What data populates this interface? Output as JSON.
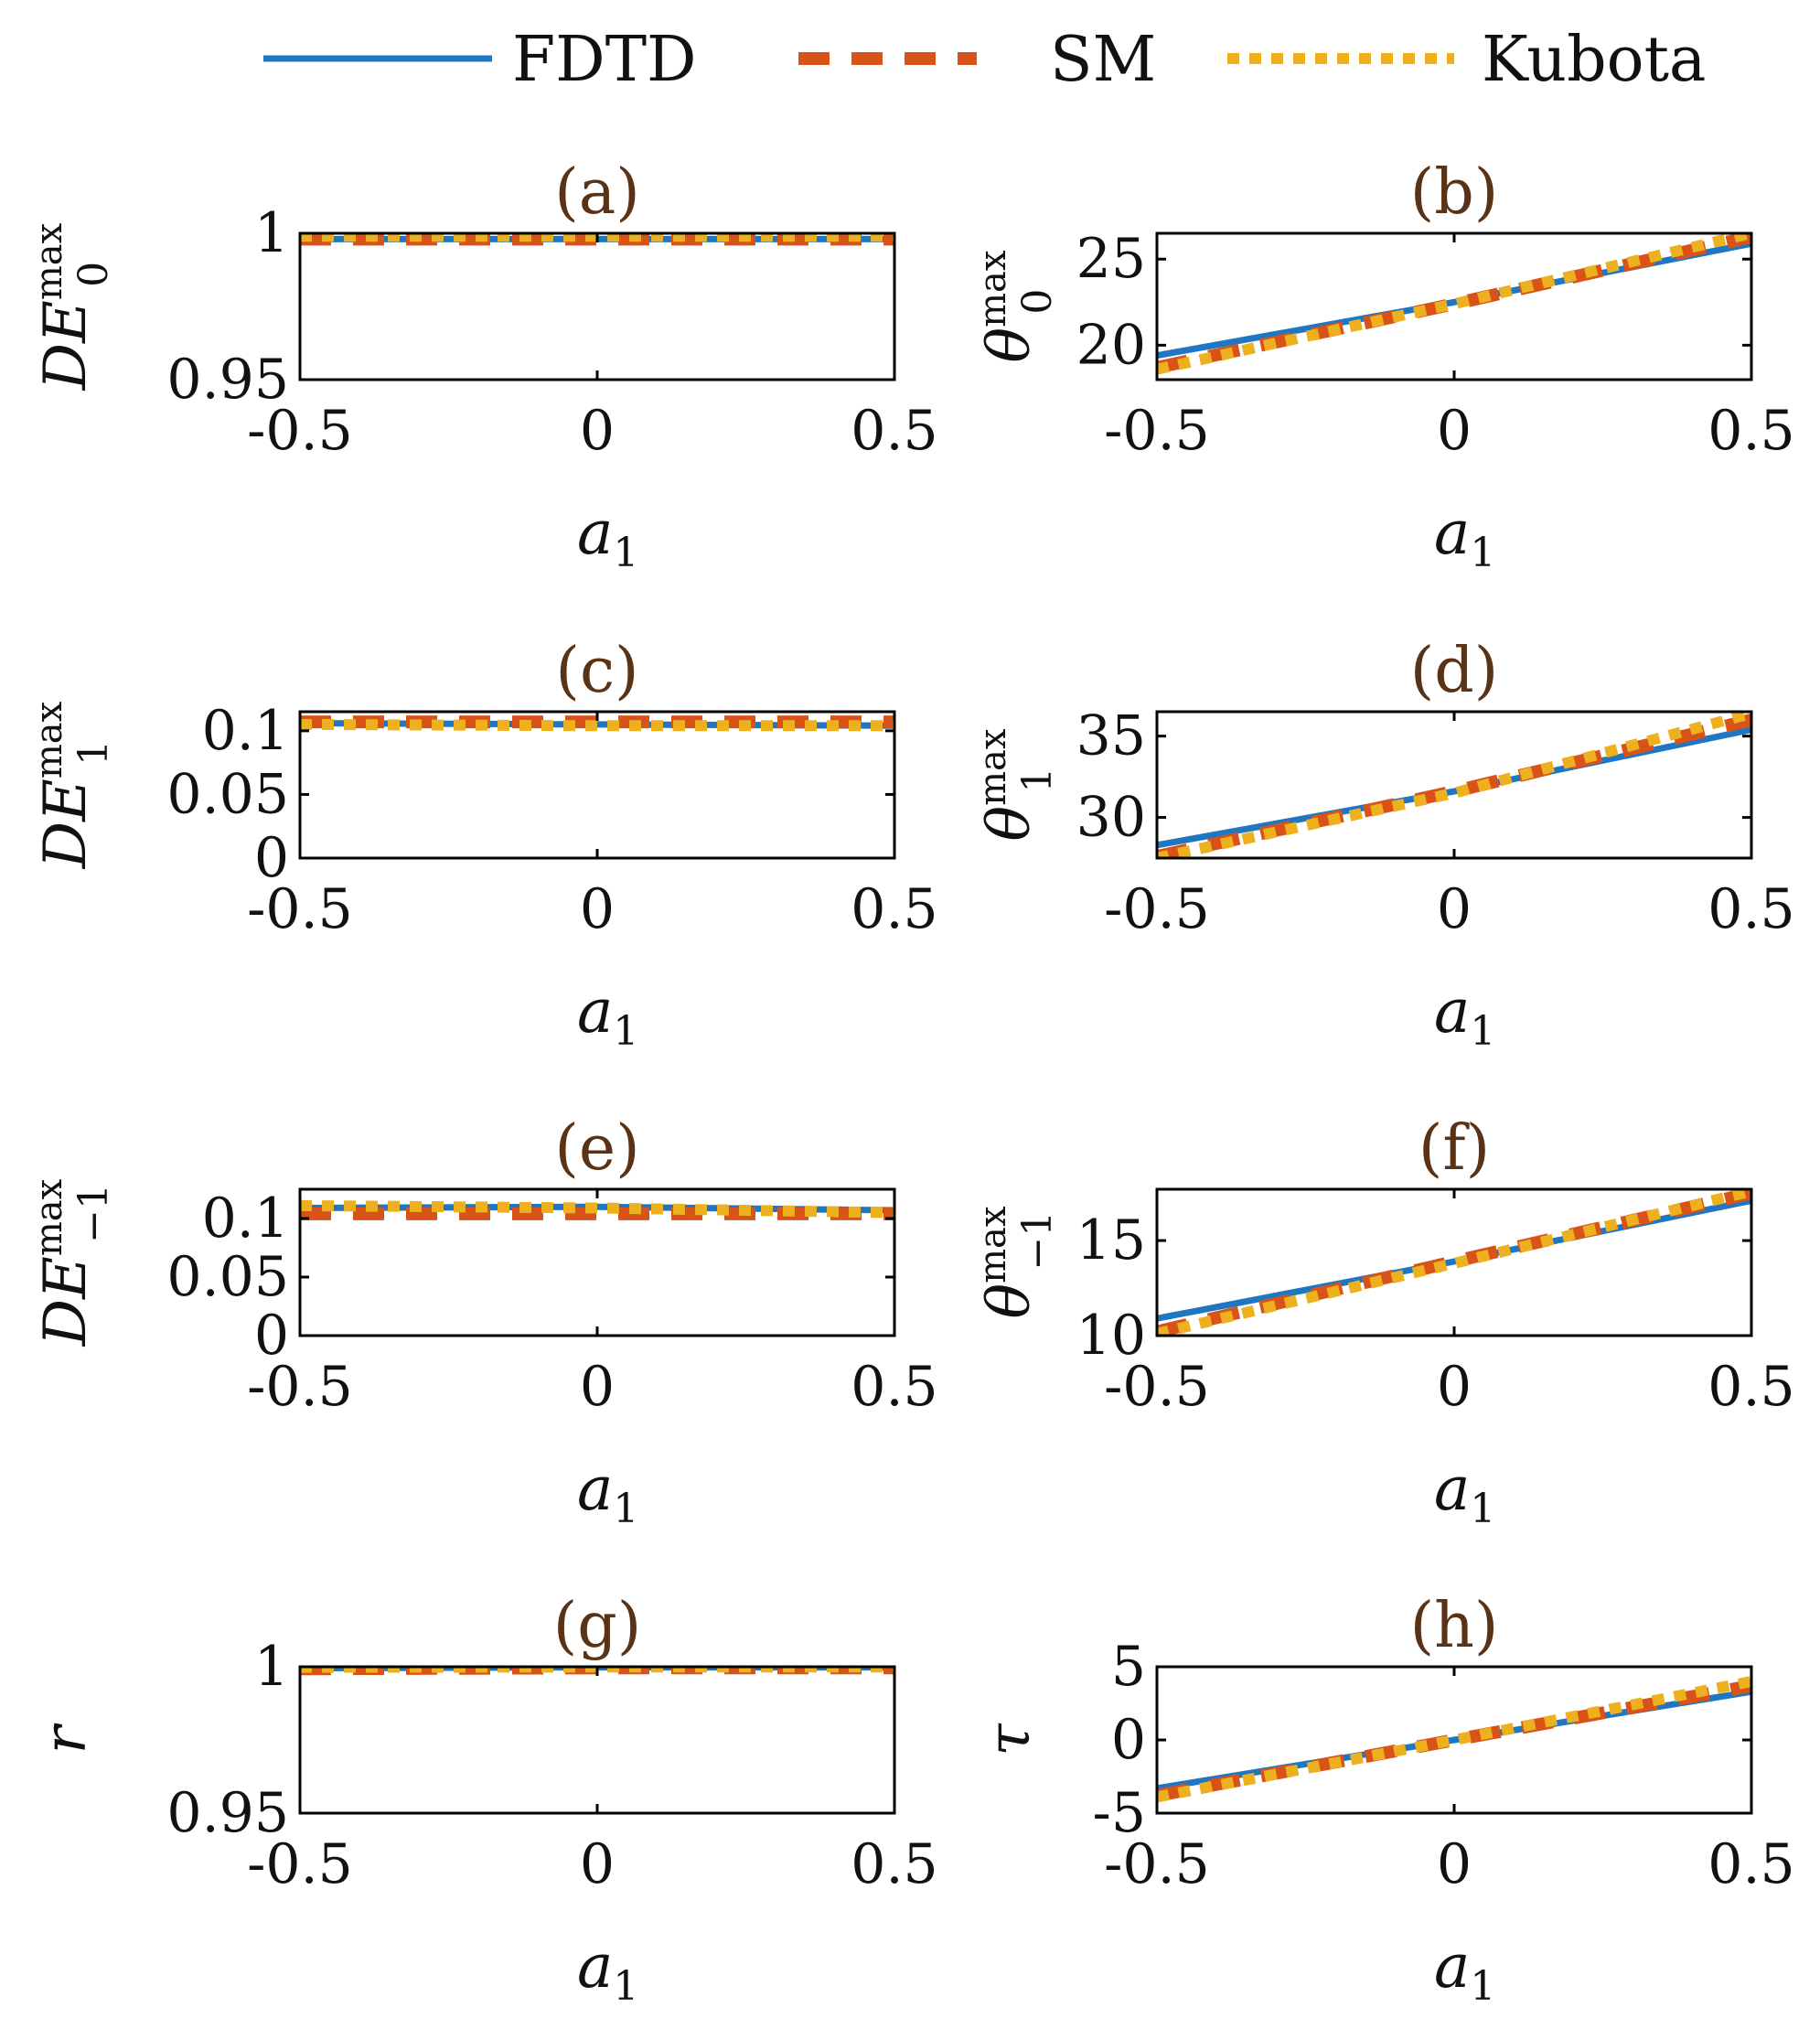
{
  "legend": [
    {
      "label": "FDTD",
      "color": "#1f77c4",
      "style": "solid"
    },
    {
      "label": "SM",
      "color": "#d95319",
      "style": "dashed"
    },
    {
      "label": "Kubota",
      "color": "#edb120",
      "style": "dotted"
    }
  ],
  "chart_data": [
    {
      "id": "a",
      "type": "line",
      "title": "(a)",
      "xlabel": "a",
      "xlabel_sub": "1",
      "ylabel": "DE",
      "ylabel_sup": "max",
      "ylabel_sub": "0",
      "xlim": [
        -0.5,
        0.5
      ],
      "ylim": [
        0.95,
        1.0
      ],
      "xticks": [
        -0.5,
        0,
        0.5
      ],
      "xtick_labels": [
        "-0.5",
        "0",
        "0.5"
      ],
      "yticks": [
        0.95,
        1.0
      ],
      "ytick_labels": [
        "0.95",
        "1"
      ],
      "x": [
        -0.5,
        0,
        0.5
      ],
      "series": [
        {
          "name": "FDTD",
          "values": [
            0.998,
            0.998,
            0.998
          ]
        },
        {
          "name": "SM",
          "values": [
            0.998,
            0.998,
            0.998
          ]
        },
        {
          "name": "Kubota",
          "values": [
            0.999,
            0.999,
            0.999
          ]
        }
      ]
    },
    {
      "id": "b",
      "type": "line",
      "title": "(b)",
      "xlabel": "a",
      "xlabel_sub": "1",
      "ylabel": "θ",
      "ylabel_sup": "max",
      "ylabel_sub": "0",
      "xlim": [
        -0.5,
        0.5
      ],
      "ylim": [
        18,
        26.5
      ],
      "xticks": [
        -0.5,
        0,
        0.5
      ],
      "xtick_labels": [
        "-0.5",
        "0",
        "0.5"
      ],
      "yticks": [
        20,
        25
      ],
      "ytick_labels": [
        "20",
        "25"
      ],
      "x": [
        -0.5,
        0,
        0.5
      ],
      "series": [
        {
          "name": "FDTD",
          "values": [
            19.4,
            22.5,
            25.9
          ]
        },
        {
          "name": "SM",
          "values": [
            18.7,
            22.4,
            26.3
          ]
        },
        {
          "name": "Kubota",
          "values": [
            18.6,
            22.4,
            26.5
          ]
        }
      ]
    },
    {
      "id": "c",
      "type": "line",
      "title": "(c)",
      "xlabel": "a",
      "xlabel_sub": "1",
      "ylabel": "DE",
      "ylabel_sup": "max",
      "ylabel_sub": "1",
      "xlim": [
        -0.5,
        0.5
      ],
      "ylim": [
        0,
        0.115
      ],
      "xticks": [
        -0.5,
        0,
        0.5
      ],
      "xtick_labels": [
        "-0.5",
        "0",
        "0.5"
      ],
      "yticks": [
        0,
        0.05,
        0.1
      ],
      "ytick_labels": [
        "0",
        "0.05",
        "0.1"
      ],
      "x": [
        -0.5,
        0,
        0.5
      ],
      "series": [
        {
          "name": "FDTD",
          "values": [
            0.106,
            0.105,
            0.104
          ]
        },
        {
          "name": "SM",
          "values": [
            0.107,
            0.107,
            0.107
          ]
        },
        {
          "name": "Kubota",
          "values": [
            0.105,
            0.104,
            0.104
          ]
        }
      ]
    },
    {
      "id": "d",
      "type": "line",
      "title": "(d)",
      "xlabel": "a",
      "xlabel_sub": "1",
      "ylabel": "θ",
      "ylabel_sup": "max",
      "ylabel_sub": "1",
      "xlim": [
        -0.5,
        0.5
      ],
      "ylim": [
        27.5,
        36.5
      ],
      "xticks": [
        -0.5,
        0,
        0.5
      ],
      "xtick_labels": [
        "-0.5",
        "0",
        "0.5"
      ],
      "yticks": [
        30,
        35
      ],
      "ytick_labels": [
        "30",
        "35"
      ],
      "x": [
        -0.5,
        0,
        0.5
      ],
      "series": [
        {
          "name": "FDTD",
          "values": [
            28.3,
            31.6,
            35.4
          ]
        },
        {
          "name": "SM",
          "values": [
            27.6,
            31.6,
            36.0
          ]
        },
        {
          "name": "Kubota",
          "values": [
            27.5,
            31.5,
            36.4
          ]
        }
      ]
    },
    {
      "id": "e",
      "type": "line",
      "title": "(e)",
      "xlabel": "a",
      "xlabel_sub": "1",
      "ylabel": "DE",
      "ylabel_sup": "max",
      "ylabel_sub": "−1",
      "xlim": [
        -0.5,
        0.5
      ],
      "ylim": [
        0,
        0.125
      ],
      "xticks": [
        -0.5,
        0,
        0.5
      ],
      "xtick_labels": [
        "-0.5",
        "0",
        "0.5"
      ],
      "yticks": [
        0,
        0.05,
        0.1
      ],
      "ytick_labels": [
        "0",
        "0.05",
        "0.1"
      ],
      "x": [
        -0.5,
        0,
        0.5
      ],
      "series": [
        {
          "name": "FDTD",
          "values": [
            0.109,
            0.11,
            0.107
          ]
        },
        {
          "name": "SM",
          "values": [
            0.104,
            0.104,
            0.104
          ]
        },
        {
          "name": "Kubota",
          "values": [
            0.111,
            0.109,
            0.105
          ]
        }
      ]
    },
    {
      "id": "f",
      "type": "line",
      "title": "(f)",
      "xlabel": "a",
      "xlabel_sub": "1",
      "ylabel": "θ",
      "ylabel_sup": "max",
      "ylabel_sub": "−1",
      "xlim": [
        -0.5,
        0.5
      ],
      "ylim": [
        10,
        17.7
      ],
      "xticks": [
        -0.5,
        0,
        0.5
      ],
      "xtick_labels": [
        "-0.5",
        "0",
        "0.5"
      ],
      "yticks": [
        10,
        15
      ],
      "ytick_labels": [
        "10",
        "15"
      ],
      "x": [
        -0.5,
        0,
        0.5
      ],
      "series": [
        {
          "name": "FDTD",
          "values": [
            10.9,
            13.9,
            17.1
          ]
        },
        {
          "name": "SM",
          "values": [
            10.2,
            13.9,
            17.5
          ]
        },
        {
          "name": "Kubota",
          "values": [
            10.1,
            13.8,
            17.6
          ]
        }
      ]
    },
    {
      "id": "g",
      "type": "line",
      "title": "(g)",
      "xlabel": "a",
      "xlabel_sub": "1",
      "ylabel": "r",
      "ylabel_sup": "",
      "ylabel_sub": "",
      "xlim": [
        -0.5,
        0.5
      ],
      "ylim": [
        0.95,
        1.0
      ],
      "xticks": [
        -0.5,
        0,
        0.5
      ],
      "xtick_labels": [
        "-0.5",
        "0",
        "0.5"
      ],
      "yticks": [
        0.95,
        1.0
      ],
      "ytick_labels": [
        "0.95",
        "1"
      ],
      "x": [
        -0.5,
        0,
        0.5
      ],
      "series": [
        {
          "name": "FDTD",
          "values": [
            0.9995,
            0.9998,
            0.9998
          ]
        },
        {
          "name": "SM",
          "values": [
            0.9993,
            0.9996,
            0.9996
          ]
        },
        {
          "name": "Kubota",
          "values": [
            0.9998,
            0.9999,
            0.9999
          ]
        }
      ]
    },
    {
      "id": "h",
      "type": "line",
      "title": "(h)",
      "xlabel": "a",
      "xlabel_sub": "1",
      "ylabel": "τ",
      "ylabel_sup": "",
      "ylabel_sub": "",
      "xlim": [
        -0.5,
        0.5
      ],
      "ylim": [
        -5,
        5
      ],
      "xticks": [
        -0.5,
        0,
        0.5
      ],
      "xtick_labels": [
        "-0.5",
        "0",
        "0.5"
      ],
      "yticks": [
        -5,
        0,
        5
      ],
      "ytick_labels": [
        "-5",
        "0",
        "5"
      ],
      "x": [
        -0.5,
        0,
        0.5
      ],
      "series": [
        {
          "name": "FDTD",
          "values": [
            -3.3,
            0.0,
            3.3
          ]
        },
        {
          "name": "SM",
          "values": [
            -3.8,
            0.0,
            3.7
          ]
        },
        {
          "name": "Kubota",
          "values": [
            -3.9,
            0.0,
            4.0
          ]
        }
      ]
    }
  ]
}
